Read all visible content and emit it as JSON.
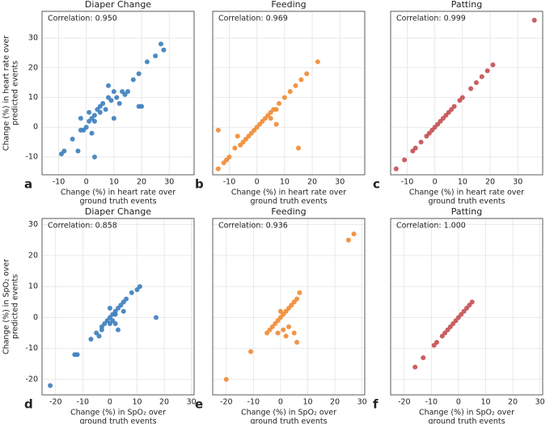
{
  "chart_data": [
    {
      "type": "scatter",
      "panel_label": "a",
      "title": "Diaper Change",
      "annotation": "Correlation: 0.950",
      "ylabel": [
        "Change (%) in heart rate over",
        "predicted events"
      ],
      "xlabel": [
        "Change (%) in heart rate  over",
        "ground truth events"
      ],
      "color": "#3b7dbd",
      "xlim": [
        -16,
        39
      ],
      "ylim": [
        -16,
        39
      ],
      "xticks": [
        -10,
        0,
        10,
        20,
        30
      ],
      "yticks": [
        -10,
        0,
        10,
        20,
        30
      ],
      "grid": true,
      "x": [
        -9,
        -8,
        -5,
        -3,
        -2,
        -1,
        0,
        1,
        2,
        3,
        3,
        4,
        5,
        5,
        6,
        7,
        8,
        9,
        10,
        11,
        12,
        13,
        14,
        15,
        17,
        19,
        20,
        22,
        25,
        27,
        28,
        3,
        -2,
        8,
        10,
        19,
        1,
        2
      ],
      "values": [
        -9,
        -8,
        -4,
        -8,
        -1,
        -1,
        0,
        2,
        3,
        4,
        -10,
        6,
        5,
        7,
        8,
        6,
        10,
        9,
        12,
        10,
        8,
        12,
        11,
        12,
        16,
        18,
        7,
        22,
        24,
        28,
        26,
        2,
        3,
        14,
        3,
        7,
        5,
        -2
      ]
    },
    {
      "type": "scatter",
      "panel_label": "b",
      "title": "Feeding",
      "annotation": "Correlation: 0.969",
      "xlabel": [
        "Change (%) in heart rate  over",
        "ground truth events"
      ],
      "color": "#ef8a33",
      "xlim": [
        -16,
        39
      ],
      "ylim": [
        -16,
        39
      ],
      "xticks": [
        -10,
        0,
        10,
        20,
        30
      ],
      "yticks": [
        -10,
        0,
        10,
        20,
        30
      ],
      "grid": true,
      "x": [
        -14,
        -12,
        -11,
        -10,
        -8,
        -6,
        -5,
        -4,
        -3,
        -2,
        -1,
        0,
        1,
        2,
        3,
        4,
        5,
        6,
        7,
        8,
        10,
        12,
        14,
        16,
        18,
        22,
        -14,
        -7,
        5,
        7,
        15
      ],
      "values": [
        -14,
        -12,
        -11,
        -10,
        -7,
        -6,
        -5,
        -4,
        -3,
        -2,
        -1,
        0,
        1,
        2,
        3,
        4,
        5,
        6,
        6,
        8,
        10,
        12,
        14,
        16,
        18,
        22,
        -1,
        -3,
        3,
        1,
        -7
      ]
    },
    {
      "type": "scatter",
      "panel_label": "c",
      "title": "Patting",
      "annotation": "Correlation: 0.999",
      "xlabel": [
        "Change (%) in heart rate  over",
        "ground truth events"
      ],
      "color": "#c44e52",
      "xlim": [
        -16,
        39
      ],
      "ylim": [
        -16,
        39
      ],
      "xticks": [
        -10,
        0,
        10,
        20,
        30
      ],
      "yticks": [
        -10,
        0,
        10,
        20,
        30
      ],
      "grid": true,
      "x": [
        -14,
        -11,
        -8,
        -7,
        -5,
        -3,
        -2,
        -1,
        0,
        1,
        2,
        3,
        4,
        5,
        6,
        7,
        9,
        10,
        13,
        15,
        17,
        19,
        21,
        36
      ],
      "values": [
        -14,
        -11,
        -8,
        -7,
        -5,
        -3,
        -2,
        -1,
        0,
        1,
        2,
        3,
        4,
        5,
        6,
        7,
        9,
        10,
        13,
        15,
        17,
        19,
        21,
        36
      ]
    },
    {
      "type": "scatter",
      "panel_label": "d",
      "title": "Diaper Change",
      "annotation": "Correlation: 0.858",
      "ylabel": [
        "Change (%) in SpO₂ over",
        "predicted events"
      ],
      "xlabel": [
        "Change (%) in SpO₂ over",
        "ground truth events"
      ],
      "color": "#3b7dbd",
      "xlim": [
        -25,
        31
      ],
      "ylim": [
        -25,
        32
      ],
      "xticks": [
        -20,
        -10,
        0,
        10,
        20,
        30
      ],
      "yticks": [
        -20,
        -10,
        0,
        10,
        20,
        30
      ],
      "grid": true,
      "x": [
        -22,
        -13,
        -12,
        -7,
        -5,
        -4,
        -3,
        -2,
        -1,
        0,
        0,
        1,
        1,
        2,
        2,
        3,
        3,
        4,
        5,
        6,
        8,
        10,
        11,
        17,
        -3,
        5,
        0,
        2
      ],
      "values": [
        -22,
        -12,
        -12,
        -7,
        -5,
        -6,
        -3,
        -2,
        -1,
        0,
        3,
        1,
        -1,
        2,
        -2,
        3,
        -4,
        4,
        5,
        6,
        8,
        9,
        10,
        0,
        -4,
        2,
        -2,
        1
      ]
    },
    {
      "type": "scatter",
      "panel_label": "e",
      "title": "Feeding",
      "annotation": "Correlation: 0.936",
      "xlabel": [
        "Change (%) in SpO₂ over",
        "ground truth events"
      ],
      "color": "#ef8a33",
      "xlim": [
        -25,
        31
      ],
      "ylim": [
        -25,
        32
      ],
      "xticks": [
        -20,
        -10,
        0,
        10,
        20,
        30
      ],
      "yticks": [
        -20,
        -10,
        0,
        10,
        20,
        30
      ],
      "grid": true,
      "x": [
        -20,
        -11,
        -5,
        -4,
        -3,
        -2,
        -1,
        0,
        0,
        1,
        2,
        3,
        4,
        5,
        6,
        7,
        5,
        6,
        2,
        -1,
        25,
        27,
        1,
        3
      ],
      "values": [
        -20,
        -11,
        -5,
        -4,
        -3,
        -2,
        -1,
        0,
        2,
        1,
        2,
        3,
        4,
        5,
        6,
        8,
        -5,
        -8,
        -6,
        -5,
        25,
        27,
        -4,
        -3
      ]
    },
    {
      "type": "scatter",
      "panel_label": "f",
      "title": "Patting",
      "annotation": "Correlation: 1.000",
      "xlabel": [
        "Change (%) in SpO₂ over",
        "ground truth events"
      ],
      "color": "#c44e52",
      "xlim": [
        -25,
        31
      ],
      "ylim": [
        -25,
        32
      ],
      "xticks": [
        -20,
        -10,
        0,
        10,
        20,
        30
      ],
      "yticks": [
        -20,
        -10,
        0,
        10,
        20,
        30
      ],
      "grid": true,
      "x": [
        -16,
        -13,
        -9,
        -8,
        -6,
        -5,
        -4,
        -3,
        -2,
        -1,
        0,
        1,
        2,
        3,
        4,
        5
      ],
      "values": [
        -16,
        -13,
        -9,
        -8,
        -6,
        -5,
        -4,
        -3,
        -2,
        -1,
        0,
        1,
        2,
        3,
        4,
        5
      ]
    }
  ]
}
